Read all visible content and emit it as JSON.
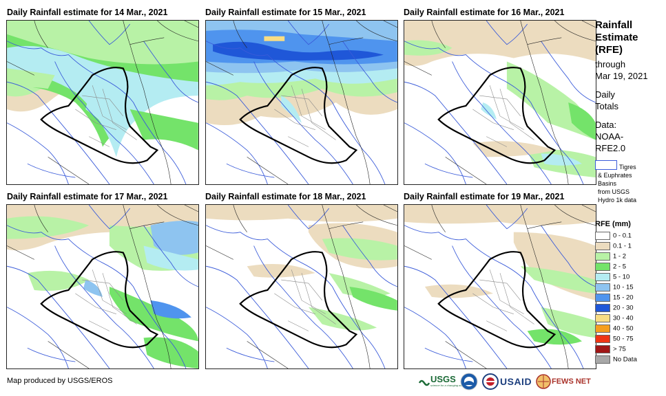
{
  "panels": [
    {
      "title": "Daily Rainfall estimate for 14 Mar., 2021",
      "variant": "widespread-north"
    },
    {
      "title": "Daily Rainfall estimate for 15 Mar., 2021",
      "variant": "heavy-north"
    },
    {
      "title": "Daily Rainfall estimate for 16 Mar., 2021",
      "variant": "scattered"
    },
    {
      "title": "Daily Rainfall estimate for 17 Mar., 2021",
      "variant": "southeast"
    },
    {
      "title": "Daily Rainfall estimate for 18 Mar., 2021",
      "variant": "light-east"
    },
    {
      "title": "Daily Rainfall estimate for 19 Mar., 2021",
      "variant": "light-southeast"
    }
  ],
  "sidebar": {
    "title_lines": [
      "Rainfall",
      "Estimate",
      "(RFE)"
    ],
    "through_label": "through",
    "through_date": "Mar 19, 2021",
    "daily_lines": [
      "Daily",
      "Totals"
    ],
    "data_lines": [
      "Data:",
      "NOAA-",
      "RFE2.0"
    ],
    "basin_lines": [
      "Tigres",
      "& Euphrates",
      "Basins",
      "from USGS",
      "Hydro 1k data"
    ]
  },
  "legend": {
    "title": "RFE (mm)",
    "items": [
      {
        "label": "0 - 0.1",
        "color": "#ffffff"
      },
      {
        "label": "0.1 - 1",
        "color": "#ecdcbf"
      },
      {
        "label": "1 - 2",
        "color": "#b8f2a6"
      },
      {
        "label": "2 - 5",
        "color": "#74e36a"
      },
      {
        "label": "5 - 10",
        "color": "#b4ecf2"
      },
      {
        "label": "10 - 15",
        "color": "#8ec4f0"
      },
      {
        "label": "15 - 20",
        "color": "#4f94ee"
      },
      {
        "label": "20 - 30",
        "color": "#1f57d8"
      },
      {
        "label": "30 - 40",
        "color": "#f9dd84"
      },
      {
        "label": "40 - 50",
        "color": "#f59e1e"
      },
      {
        "label": "50 - 75",
        "color": "#ee3514"
      },
      {
        "label": "> 75",
        "color": "#a01616"
      },
      {
        "label": "No Data",
        "color": "#a8a8a8"
      }
    ]
  },
  "footer": {
    "credit": "Map produced by USGS/EROS"
  },
  "logos": {
    "usgs": "USGS",
    "usgs_tagline": "science for a changing world",
    "usaid": "USAID",
    "fews": "FEWS NET"
  }
}
